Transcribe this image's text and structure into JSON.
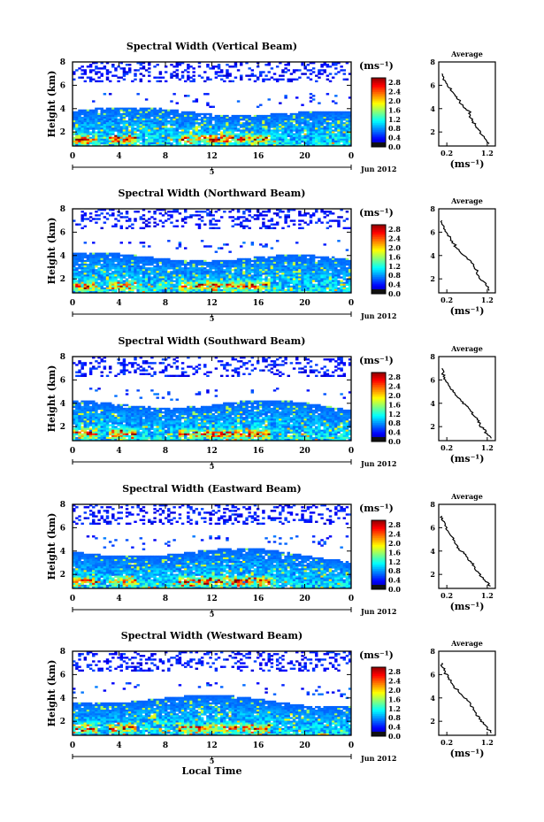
{
  "shared": {
    "xlabel": "Local Time",
    "date_label": "Jun 2012",
    "day_label": "5",
    "unit_label": "(ms⁻¹)",
    "avg_title": "Average",
    "ylabel": "Height (km)"
  },
  "chart_data": [
    {
      "type": "heatmap",
      "title": "Spectral Width (Vertical Beam)",
      "ylabel": "Height (km)",
      "xlabel": "",
      "x_ticks": [
        "0",
        "4",
        "8",
        "12",
        "16",
        "20",
        "0"
      ],
      "y_ticks": [
        "2",
        "4",
        "6",
        "8"
      ],
      "xlim": [
        0,
        24
      ],
      "ylim": [
        0.8,
        8
      ],
      "colorbar": {
        "label": "(ms⁻¹)",
        "ticks": [
          "0.0",
          "0.4",
          "0.8",
          "1.2",
          "1.6",
          "2.0",
          "2.4",
          "2.8"
        ],
        "range": [
          0.0,
          3.0
        ]
      },
      "cloud_top_km": 3.8,
      "average_profile": {
        "title": "Average",
        "xlabel": "(ms⁻¹)",
        "x_ticks": [
          "0.2",
          "1.2"
        ],
        "y_ticks": [
          "2",
          "4",
          "6",
          "8"
        ],
        "xlim": [
          0.0,
          1.4
        ],
        "ylim": [
          0.8,
          8
        ],
        "height_km": [
          1.0,
          1.4,
          1.8,
          2.2,
          2.6,
          3.0,
          3.4,
          3.8,
          4.2,
          4.6,
          5.0,
          5.4,
          5.8,
          6.2,
          6.6,
          7.0
        ],
        "width_ms": [
          1.25,
          1.15,
          1.05,
          0.98,
          0.9,
          0.82,
          0.78,
          0.75,
          0.6,
          0.52,
          0.45,
          0.35,
          0.25,
          0.18,
          0.12,
          0.08
        ]
      }
    },
    {
      "type": "heatmap",
      "title": "Spectral Width (Northward Beam)",
      "ylabel": "Height (km)",
      "xlabel": "",
      "x_ticks": [
        "0",
        "4",
        "8",
        "12",
        "16",
        "20",
        "0"
      ],
      "y_ticks": [
        "2",
        "4",
        "6",
        "8"
      ],
      "xlim": [
        0,
        24
      ],
      "ylim": [
        0.8,
        8
      ],
      "colorbar": {
        "label": "(ms⁻¹)",
        "ticks": [
          "0.0",
          "0.4",
          "0.8",
          "1.2",
          "1.6",
          "2.0",
          "2.4",
          "2.8"
        ],
        "range": [
          0.0,
          3.0
        ]
      },
      "cloud_top_km": 3.9,
      "average_profile": {
        "title": "Average",
        "xlabel": "(ms⁻¹)",
        "x_ticks": [
          "0.2",
          "1.2"
        ],
        "y_ticks": [
          "2",
          "4",
          "6",
          "8"
        ],
        "xlim": [
          0.0,
          1.4
        ],
        "ylim": [
          0.8,
          8
        ],
        "height_km": [
          1.0,
          1.4,
          1.8,
          2.2,
          2.6,
          3.0,
          3.4,
          3.8,
          4.2,
          4.6,
          5.0,
          5.4,
          5.8,
          6.2,
          6.6,
          7.0
        ],
        "width_ms": [
          1.25,
          1.18,
          1.1,
          1.0,
          0.95,
          0.88,
          0.8,
          0.7,
          0.55,
          0.45,
          0.38,
          0.3,
          0.22,
          0.16,
          0.1,
          0.08
        ]
      }
    },
    {
      "type": "heatmap",
      "title": "Spectral Width (Southward Beam)",
      "ylabel": "Height (km)",
      "xlabel": "",
      "x_ticks": [
        "0",
        "4",
        "8",
        "12",
        "16",
        "20",
        "0"
      ],
      "y_ticks": [
        "2",
        "4",
        "6",
        "8"
      ],
      "xlim": [
        0,
        24
      ],
      "ylim": [
        0.8,
        8
      ],
      "colorbar": {
        "label": "(ms⁻¹)",
        "ticks": [
          "0.0",
          "0.4",
          "0.8",
          "1.2",
          "1.6",
          "2.0",
          "2.4",
          "2.8"
        ],
        "range": [
          0.0,
          3.0
        ]
      },
      "cloud_top_km": 4.0,
      "average_profile": {
        "title": "Average",
        "xlabel": "(ms⁻¹)",
        "x_ticks": [
          "0.2",
          "1.2"
        ],
        "y_ticks": [
          "2",
          "4",
          "6",
          "8"
        ],
        "xlim": [
          0.0,
          1.4
        ],
        "ylim": [
          0.8,
          8
        ],
        "height_km": [
          1.0,
          1.4,
          1.8,
          2.2,
          2.6,
          3.0,
          3.4,
          3.8,
          4.2,
          4.6,
          5.0,
          5.4,
          5.8,
          6.2,
          6.6,
          7.0
        ],
        "width_ms": [
          1.3,
          1.2,
          1.1,
          1.02,
          0.95,
          0.85,
          0.78,
          0.68,
          0.55,
          0.45,
          0.35,
          0.28,
          0.2,
          0.15,
          0.1,
          0.08
        ]
      }
    },
    {
      "type": "heatmap",
      "title": "Spectral Width (Eastward Beam)",
      "ylabel": "Height (km)",
      "xlabel": "",
      "x_ticks": [
        "0",
        "4",
        "8",
        "12",
        "16",
        "20",
        "0"
      ],
      "y_ticks": [
        "2",
        "4",
        "6",
        "8"
      ],
      "xlim": [
        0,
        24
      ],
      "ylim": [
        0.8,
        8
      ],
      "colorbar": {
        "label": "(ms⁻¹)",
        "ticks": [
          "0.0",
          "0.4",
          "0.8",
          "1.2",
          "1.6",
          "2.0",
          "2.4",
          "2.8"
        ],
        "range": [
          0.0,
          3.0
        ]
      },
      "cloud_top_km": 3.9,
      "average_profile": {
        "title": "Average",
        "xlabel": "(ms⁻¹)",
        "x_ticks": [
          "0.2",
          "1.2"
        ],
        "y_ticks": [
          "2",
          "4",
          "6",
          "8"
        ],
        "xlim": [
          0.0,
          1.4
        ],
        "ylim": [
          0.8,
          8
        ],
        "height_km": [
          1.0,
          1.4,
          1.8,
          2.2,
          2.6,
          3.0,
          3.4,
          3.8,
          4.2,
          4.6,
          5.0,
          5.4,
          5.8,
          6.2,
          6.6,
          7.0
        ],
        "width_ms": [
          1.28,
          1.15,
          1.05,
          0.98,
          0.9,
          0.8,
          0.72,
          0.62,
          0.5,
          0.42,
          0.35,
          0.28,
          0.2,
          0.15,
          0.1,
          0.08
        ]
      }
    },
    {
      "type": "heatmap",
      "title": "Spectral Width (Westward Beam)",
      "ylabel": "Height (km)",
      "xlabel": "Local Time",
      "x_ticks": [
        "0",
        "4",
        "8",
        "12",
        "16",
        "20",
        "0"
      ],
      "y_ticks": [
        "2",
        "4",
        "6",
        "8"
      ],
      "xlim": [
        0,
        24
      ],
      "ylim": [
        0.8,
        8
      ],
      "colorbar": {
        "label": "(ms⁻¹)",
        "ticks": [
          "0.0",
          "0.4",
          "0.8",
          "1.2",
          "1.6",
          "2.0",
          "2.4",
          "2.8"
        ],
        "range": [
          0.0,
          3.0
        ]
      },
      "cloud_top_km": 3.9,
      "average_profile": {
        "title": "Average",
        "xlabel": "(ms⁻¹)",
        "x_ticks": [
          "0.2",
          "1.2"
        ],
        "y_ticks": [
          "2",
          "4",
          "6",
          "8"
        ],
        "xlim": [
          0.0,
          1.4
        ],
        "ylim": [
          0.8,
          8
        ],
        "height_km": [
          1.0,
          1.4,
          1.8,
          2.2,
          2.6,
          3.0,
          3.4,
          3.8,
          4.2,
          4.6,
          5.0,
          5.4,
          5.8,
          6.2,
          6.6,
          7.0
        ],
        "width_ms": [
          1.3,
          1.2,
          1.1,
          1.0,
          0.92,
          0.85,
          0.78,
          0.7,
          0.58,
          0.48,
          0.38,
          0.3,
          0.22,
          0.16,
          0.1,
          0.08
        ]
      }
    }
  ]
}
